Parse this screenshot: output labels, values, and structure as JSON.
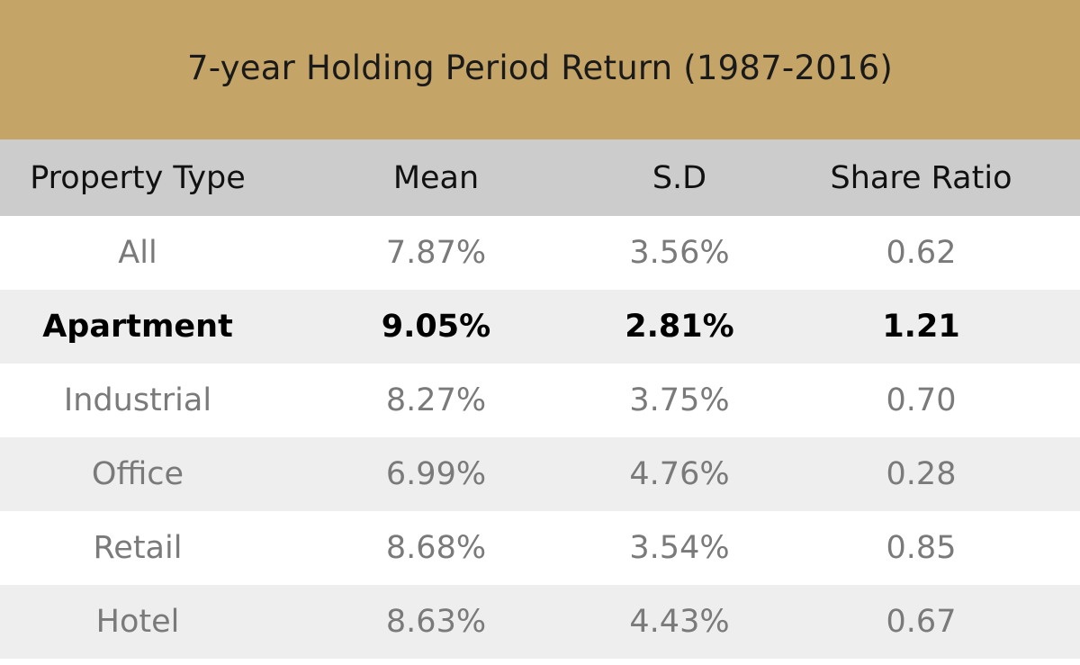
{
  "title": "7-year Holding Period Return (1987-2016)",
  "colors": {
    "title_background": "#c4a467",
    "header_background": "#cccccc",
    "row_alt_background": "#eeeeee",
    "muted_text": "#7a7a7a",
    "highlight_text": "#000000"
  },
  "chart_data": {
    "type": "table",
    "title": "7-year Holding Period Return (1987-2016)",
    "columns": [
      "Property Type",
      "Mean",
      "S.D",
      "Share Ratio"
    ],
    "rows": [
      {
        "cells": [
          "All",
          "7.87%",
          "3.56%",
          "0.62"
        ],
        "highlight": false
      },
      {
        "cells": [
          "Apartment",
          "9.05%",
          "2.81%",
          "1.21"
        ],
        "highlight": true
      },
      {
        "cells": [
          "Industrial",
          "8.27%",
          "3.75%",
          "0.70"
        ],
        "highlight": false
      },
      {
        "cells": [
          "Office",
          "6.99%",
          "4.76%",
          "0.28"
        ],
        "highlight": false
      },
      {
        "cells": [
          "Retail",
          "8.68%",
          "3.54%",
          "0.85"
        ],
        "highlight": false
      },
      {
        "cells": [
          "Hotel",
          "8.63%",
          "4.43%",
          "0.67"
        ],
        "highlight": false
      }
    ]
  }
}
